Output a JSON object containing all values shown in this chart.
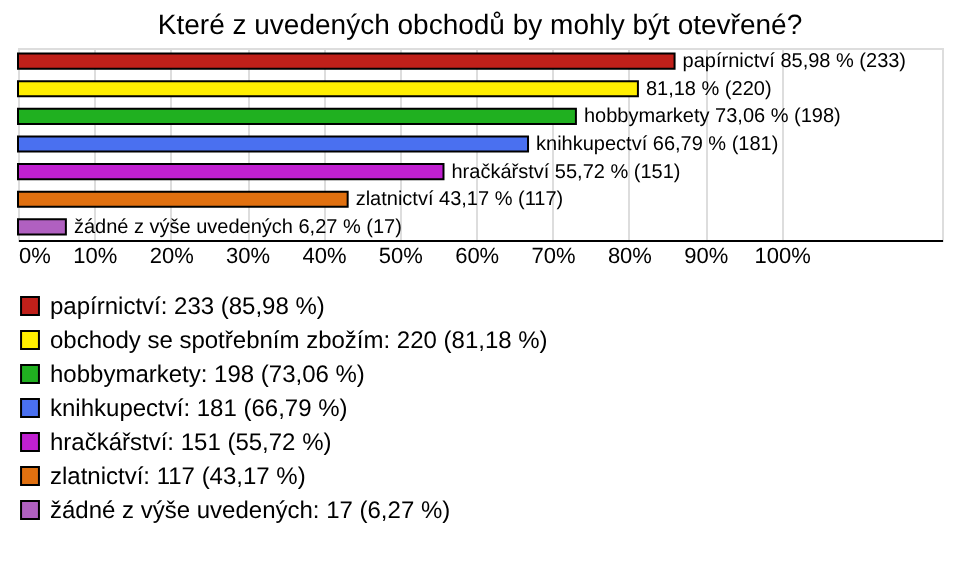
{
  "chart_data": {
    "type": "bar",
    "orientation": "horizontal",
    "title": "Které z uvedených obchodů by mohly být otevřené?",
    "categories": [
      null,
      null,
      null,
      null,
      null,
      null,
      null
    ],
    "series": [
      {
        "name": "papírnictví: 233 (85,98 %)",
        "color": "#c0201a",
        "values": [
          85.98,
          null,
          null,
          null,
          null,
          null,
          null
        ],
        "value_labels": [
          "papírnictví 85,98 % (233)",
          null,
          null,
          null,
          null,
          null,
          null
        ]
      },
      {
        "name": "obchody se spotřebním zbožím: 220 (81,18 %)",
        "color": "#ffee00",
        "values": [
          null,
          81.18,
          null,
          null,
          null,
          null,
          null
        ],
        "value_labels": [
          null,
          "81,18 % (220)",
          null,
          null,
          null,
          null,
          null
        ]
      },
      {
        "name": "hobbymarkety: 198 (73,06 %)",
        "color": "#20b020",
        "values": [
          null,
          null,
          73.06,
          null,
          null,
          null,
          null
        ],
        "value_labels": [
          null,
          null,
          "hobbymarkety 73,06 % (198)",
          null,
          null,
          null,
          null
        ]
      },
      {
        "name": "knihkupectví: 181 (66,79 %)",
        "color": "#4a70f0",
        "values": [
          null,
          null,
          null,
          66.79,
          null,
          null,
          null
        ],
        "value_labels": [
          null,
          null,
          null,
          "knihkupectví 66,79 % (181)",
          null,
          null,
          null
        ]
      },
      {
        "name": "hračkářství: 151 (55,72 %)",
        "color": "#c020d0",
        "values": [
          null,
          null,
          null,
          null,
          55.72,
          null,
          null
        ],
        "value_labels": [
          null,
          null,
          null,
          null,
          "hračkářství 55,72 % (151)",
          null,
          null
        ]
      },
      {
        "name": "zlatnictví: 117 (43,17 %)",
        "color": "#e07010",
        "values": [
          null,
          null,
          null,
          null,
          null,
          43.17,
          null
        ],
        "value_labels": [
          null,
          null,
          null,
          null,
          null,
          "zlatnictví 43,17 % (117)",
          null
        ]
      },
      {
        "name": "žádné z výše uvedených: 17 (6,27 %)",
        "color": "#b060c0",
        "values": [
          null,
          null,
          null,
          null,
          null,
          null,
          6.27
        ],
        "value_labels": [
          null,
          null,
          null,
          null,
          null,
          null,
          "žádné z výše uvedených 6,27 % (17)"
        ]
      }
    ],
    "xlim": [
      0,
      121
    ],
    "xticks": [
      {
        "value": 0,
        "label": "0%"
      },
      {
        "value": 10,
        "label": "10%"
      },
      {
        "value": 20,
        "label": "20%"
      },
      {
        "value": 30,
        "label": "30%"
      },
      {
        "value": 40,
        "label": "40%"
      },
      {
        "value": 50,
        "label": "50%"
      },
      {
        "value": 60,
        "label": "60%"
      },
      {
        "value": 70,
        "label": "70%"
      },
      {
        "value": 80,
        "label": "80%"
      },
      {
        "value": 90,
        "label": "90%"
      },
      {
        "value": 100,
        "label": "100%"
      }
    ],
    "grid": "x",
    "legend": "bottom",
    "tick_labels": "x"
  }
}
